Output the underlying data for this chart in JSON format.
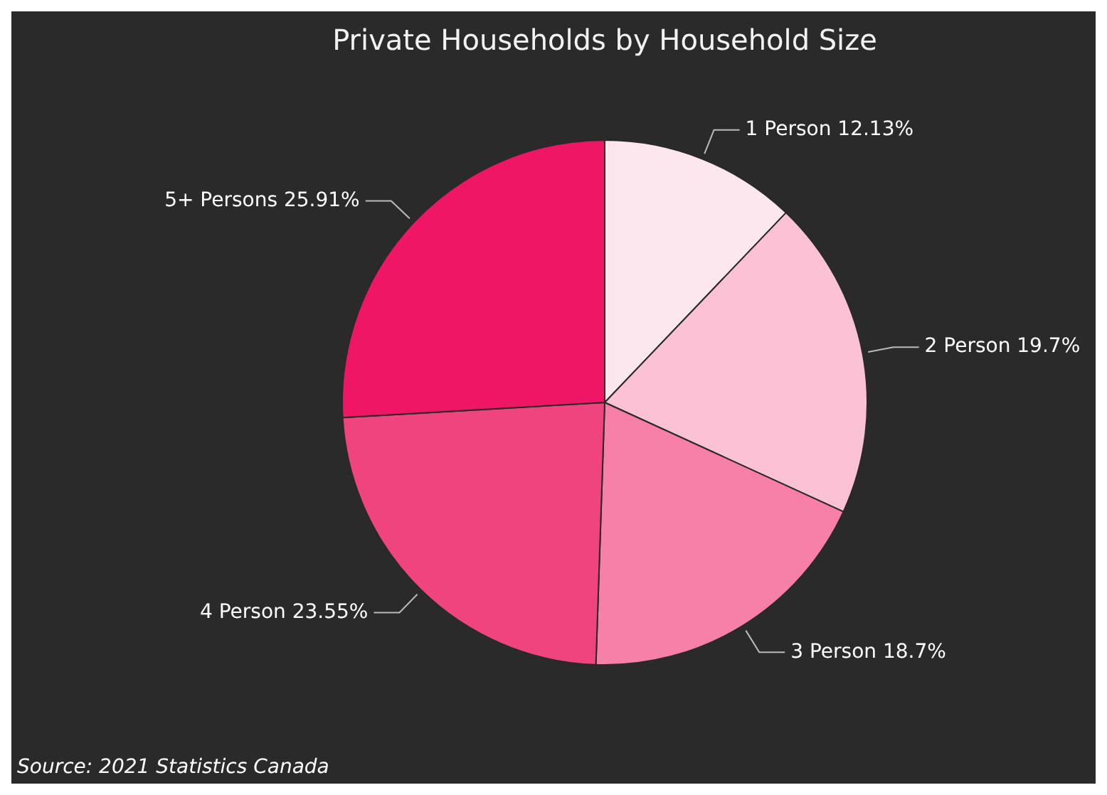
{
  "chart_data": {
    "type": "pie",
    "title": "Private Households by Household Size",
    "categories": [
      "1 Person",
      "2 Person",
      "3 Person",
      "4 Person",
      "5+ Persons"
    ],
    "values": [
      12.13,
      19.7,
      18.7,
      23.55,
      25.91
    ],
    "value_labels": [
      "12.13%",
      "19.7%",
      "18.7%",
      "23.55%",
      "25.91%"
    ],
    "colors": [
      "#fde7ee",
      "#fbc1d5",
      "#f77fa8",
      "#f0447f",
      "#ef1665"
    ],
    "legend": false,
    "annotations": [
      "Source: 2021 Statistics Canada"
    ]
  }
}
